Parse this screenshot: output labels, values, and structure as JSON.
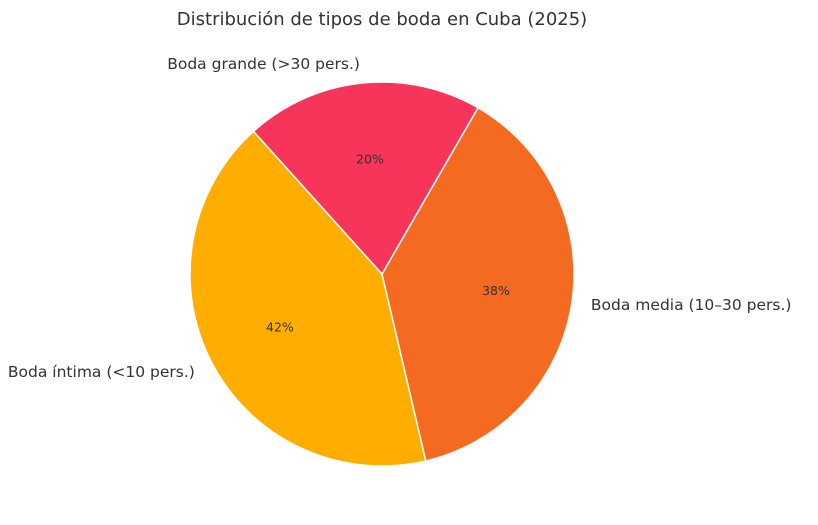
{
  "chart_data": {
    "type": "pie",
    "title": "Distribución de tipos de boda en Cuba (2025)",
    "slices": [
      {
        "label": "Boda íntima (<10 pers.)",
        "value": 42,
        "pct_label": "42%",
        "color": "#FFAE00"
      },
      {
        "label": "Boda media (10–30 pers.)",
        "value": 38,
        "pct_label": "38%",
        "color": "#F46A21"
      },
      {
        "label": "Boda grande (>30 pers.)",
        "value": 20,
        "pct_label": "20%",
        "color": "#F73459"
      }
    ],
    "legend": "none"
  }
}
